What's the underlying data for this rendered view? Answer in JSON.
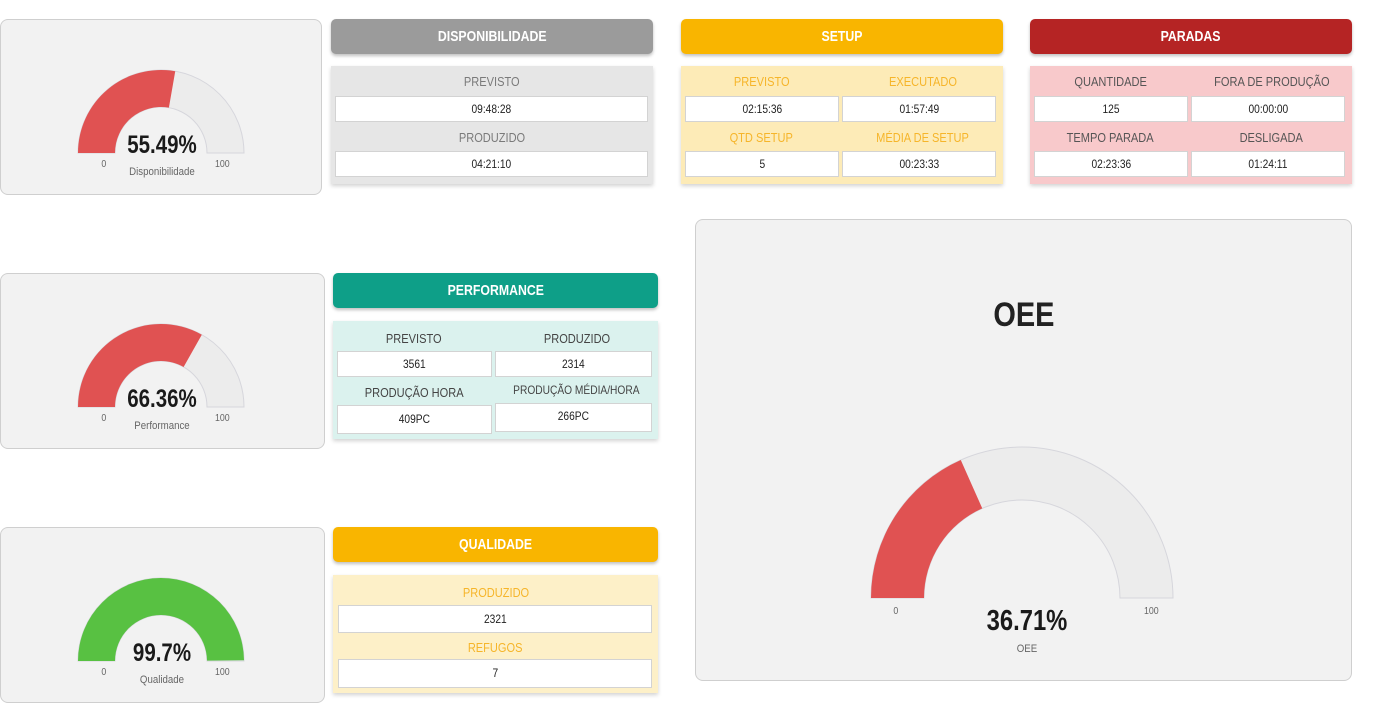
{
  "gauges": {
    "disponibilidade": {
      "value_text": "55.49%",
      "label": "Disponibilidade",
      "min": "0",
      "max": "100",
      "fraction": 0.5549,
      "color": "#e05252"
    },
    "performance": {
      "value_text": "66.36%",
      "label": "Performance",
      "min": "0",
      "max": "100",
      "fraction": 0.6636,
      "color": "#e05252"
    },
    "qualidade": {
      "value_text": "99.7%",
      "label": "Qualidade",
      "min": "0",
      "max": "100",
      "fraction": 0.997,
      "color": "#58c142"
    },
    "oee": {
      "title": "OEE",
      "value_text": "36.71%",
      "label": "OEE",
      "min": "0",
      "max": "100",
      "fraction": 0.3671,
      "color": "#e05252"
    }
  },
  "disponibilidade": {
    "header": "DISPONIBILIDADE",
    "previsto_label": "PREVISTO",
    "previsto_value": "09:48:28",
    "produzido_label": "PRODUZIDO",
    "produzido_value": "04:21:10"
  },
  "setup": {
    "header": "SETUP",
    "previsto_label": "PREVISTO",
    "previsto_value": "02:15:36",
    "executado_label": "EXECUTADO",
    "executado_value": "01:57:49",
    "qtd_label": "QTD SETUP",
    "qtd_value": "5",
    "media_label": "MÉDIA DE SETUP",
    "media_value": "00:23:33"
  },
  "paradas": {
    "header": "PARADAS",
    "quantidade_label": "QUANTIDADE",
    "quantidade_value": "125",
    "fora_label": "FORA DE PRODUÇÃO",
    "fora_value": "00:00:00",
    "tempo_label": "TEMPO PARADA",
    "tempo_value": "02:23:36",
    "desligada_label": "DESLIGADA",
    "desligada_value": "01:24:11"
  },
  "performance": {
    "header": "PERFORMANCE",
    "previsto_label": "PREVISTO",
    "previsto_value": "3561",
    "produzido_label": "PRODUZIDO",
    "produzido_value": "2314",
    "hora_label": "PRODUÇÃO HORA",
    "hora_value": "409PC",
    "media_hora_label": "PRODUÇÃO MÉDIA/HORA",
    "media_hora_value": "266PC"
  },
  "qualidade": {
    "header": "QUALIDADE",
    "produzido_label": "PRODUZIDO",
    "produzido_value": "2321",
    "refugos_label": "REFUGOS",
    "refugos_value": "7"
  },
  "colors": {
    "gray_header": "#9b9b9b",
    "gray_body": "#e6e6e6",
    "setup_header": "#f9b500",
    "setup_body": "#fdebb7",
    "setup_label": "#f6b52a",
    "paradas_header": "#b52424",
    "paradas_body": "#f8c9cb",
    "paradas_label": "#555555",
    "perf_header": "#0e9f88",
    "perf_body": "#dbf2ee",
    "qual_header": "#f9b500",
    "qual_body": "#fdf0c8",
    "gauge_bg": "#ececec",
    "gauge_bg_stroke": "#d6d6dc"
  }
}
